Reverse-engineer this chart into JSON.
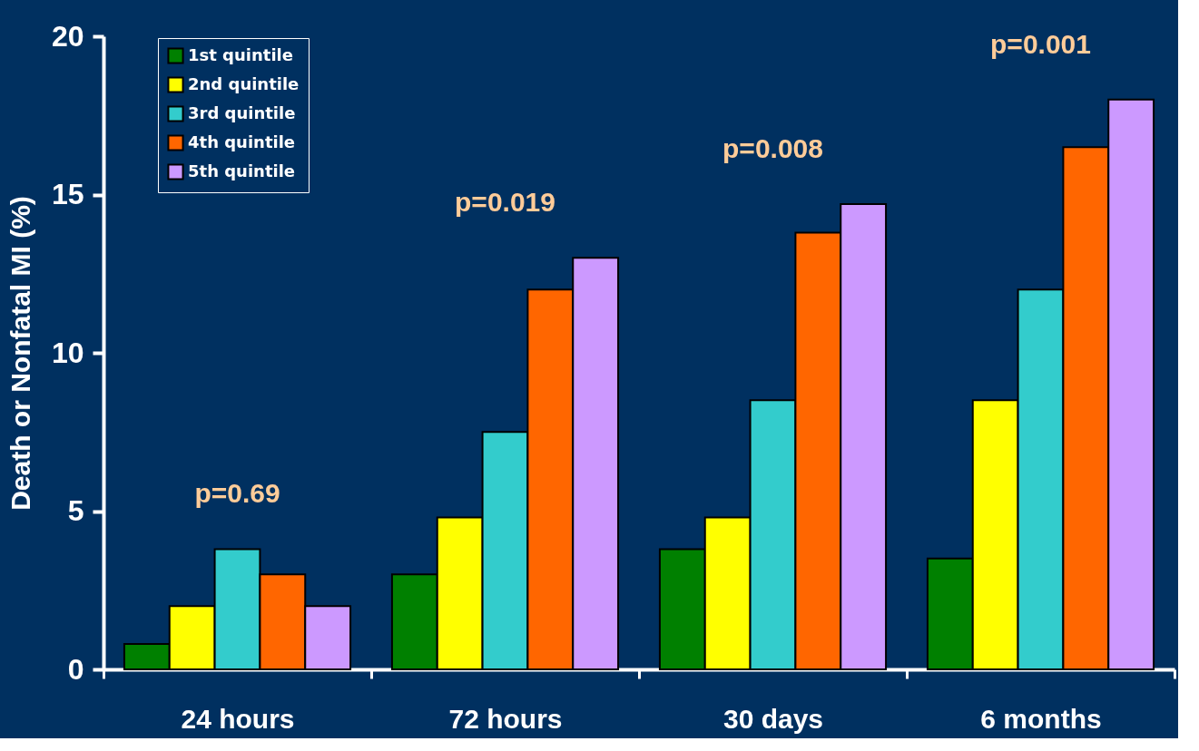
{
  "chart_data": {
    "type": "bar",
    "ylabel": "Death or Nonfatal MI (%)",
    "categories": [
      "24 hours",
      "72 hours",
      "30 days",
      "6 months"
    ],
    "series": [
      {
        "name": "1st quintile",
        "color": "#008000",
        "values": [
          0.8,
          3,
          3.8,
          3.5
        ]
      },
      {
        "name": "2nd quintile",
        "color": "#ffff00",
        "values": [
          2,
          4.8,
          4.8,
          8.5
        ]
      },
      {
        "name": "3rd quintile",
        "color": "#33cccc",
        "values": [
          3.8,
          7.5,
          8.5,
          12
        ]
      },
      {
        "name": "4th quintile",
        "color": "#ff6600",
        "values": [
          3,
          12,
          13.8,
          16.5
        ]
      },
      {
        "name": "5th quintile",
        "color": "#cc99ff",
        "values": [
          2,
          13,
          14.7,
          18
        ]
      }
    ],
    "ylim": [
      0,
      20
    ],
    "yticks": [
      0,
      5,
      10,
      15,
      20
    ],
    "legend": "top left",
    "annotations": [
      "p=0.69",
      "p=0.019",
      "p=0.008",
      "p=0.001"
    ]
  }
}
